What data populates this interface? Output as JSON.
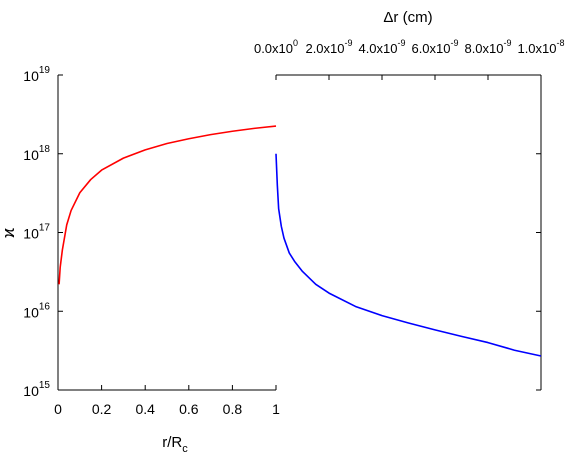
{
  "chart_data": [
    {
      "type": "line",
      "title": "",
      "xlabel": "r/R",
      "xlabel_sub": "c",
      "ylabel": "ϰ",
      "xlim": [
        0,
        1
      ],
      "ylim": [
        1000000000000000.0,
        1e+19
      ],
      "yscale": "log",
      "x_ticks": [
        "0",
        "0.2",
        "0.4",
        "0.6",
        "0.8",
        "1"
      ],
      "y_ticks": [
        {
          "base": "10",
          "exp": "15"
        },
        {
          "base": "10",
          "exp": "16"
        },
        {
          "base": "10",
          "exp": "17"
        },
        {
          "base": "10",
          "exp": "18"
        },
        {
          "base": "10",
          "exp": "19"
        }
      ],
      "grid": false,
      "series": [
        {
          "color": "#ff0000",
          "x": [
            0.005,
            0.01,
            0.02,
            0.04,
            0.06,
            0.1,
            0.15,
            0.2,
            0.3,
            0.4,
            0.5,
            0.6,
            0.7,
            0.8,
            0.9,
            1.0
          ],
          "y": [
            2.2e+16,
            3.6e+16,
            6e+16,
            1.25e+17,
            1.9e+17,
            3.2e+17,
            4.7e+17,
            6.2e+17,
            8.8e+17,
            1.12e+18,
            1.35e+18,
            1.55e+18,
            1.75e+18,
            1.93e+18,
            2.1e+18,
            2.25e+18
          ]
        }
      ]
    },
    {
      "type": "line",
      "title": "",
      "xlabel": "Δr (cm)",
      "xlim": [
        0,
        1e-08
      ],
      "ylim": [
        1000000000000000.0,
        1e+19
      ],
      "yscale": "log",
      "x_ticks": [
        {
          "mant": "0.0x10",
          "exp": "0"
        },
        {
          "mant": "2.0x10",
          "exp": "-9"
        },
        {
          "mant": "4.0x10",
          "exp": "-9"
        },
        {
          "mant": "6.0x10",
          "exp": "-9"
        },
        {
          "mant": "8.0x10",
          "exp": "-9"
        },
        {
          "mant": "1.0x10",
          "exp": "-8"
        }
      ],
      "grid": false,
      "series": [
        {
          "color": "#0000ff",
          "x": [
            0,
            5e-11,
            1e-10,
            2e-10,
            3e-10,
            5e-10,
            7e-10,
            1e-09,
            1.5e-09,
            2e-09,
            3e-09,
            4e-09,
            5e-09,
            6e-09,
            7e-09,
            8e-09,
            9e-09,
            1e-08
          ],
          "y": [
            1e+18,
            4e+17,
            2e+17,
            1.2e+17,
            8.5e+16,
            5.5e+16,
            4.3e+16,
            3.2e+16,
            2.2e+16,
            1.7e+16,
            1.15e+16,
            8800000000000000.0,
            7100000000000000.0,
            5800000000000000.0,
            4800000000000000.0,
            4000000000000000.0,
            3200000000000000.0,
            2700000000000000.0
          ]
        }
      ]
    }
  ]
}
